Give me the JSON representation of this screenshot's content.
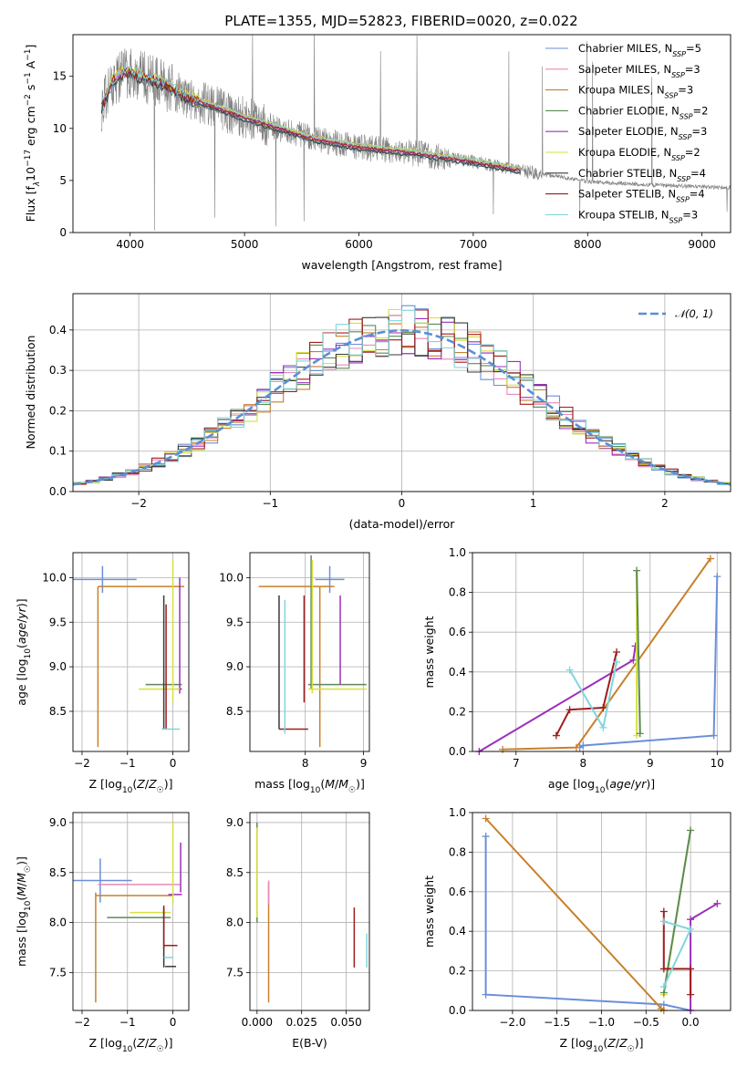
{
  "figure": {
    "title": "PLATE=1355, MJD=52823, FIBERID=0020, z=0.022"
  },
  "colors": {
    "spectrum": "#808080",
    "gauss": "#5b8ed6",
    "grid": "#b0b0b0"
  },
  "models": [
    {
      "name": "Chabrier MILES, N$_{SSP}$=5",
      "label_main": "Chabrier MILES, N",
      "label_sub": "SSP",
      "label_tail": "=5",
      "color": "#6a8fd8"
    },
    {
      "name": "Salpeter MILES, N$_{SSP}$=3",
      "label_main": "Salpeter MILES, N",
      "label_sub": "SSP",
      "label_tail": "=3",
      "color": "#e88ab8"
    },
    {
      "name": "Kroupa MILES, N$_{SSP}$=3",
      "label_main": "Kroupa MILES, N",
      "label_sub": "SSP",
      "label_tail": "=3",
      "color": "#c8802a"
    },
    {
      "name": "Chabrier ELODIE, N$_{SSP}$=2",
      "label_main": "Chabrier ELODIE, N",
      "label_sub": "SSP",
      "label_tail": "=2",
      "color": "#5d8a55"
    },
    {
      "name": "Salpeter ELODIE, N$_{SSP}$=3",
      "label_main": "Salpeter ELODIE, N",
      "label_sub": "SSP",
      "label_tail": "=3",
      "color": "#9b30b8"
    },
    {
      "name": "Kroupa ELODIE, N$_{SSP}$=2",
      "label_main": "Kroupa ELODIE, N",
      "label_sub": "SSP",
      "label_tail": "=2",
      "color": "#d6e040"
    },
    {
      "name": "Chabrier STELIB, N$_{SSP}$=4",
      "label_main": "Chabrier STELIB, N",
      "label_sub": "SSP",
      "label_tail": "=4",
      "color": "#3a3a3a"
    },
    {
      "name": "Salpeter STELIB, N$_{SSP}$=4",
      "label_main": "Salpeter STELIB, N",
      "label_sub": "SSP",
      "label_tail": "=4",
      "color": "#a01c1c"
    },
    {
      "name": "Kroupa STELIB, N$_{SSP}$=3",
      "label_main": "Kroupa STELIB, N",
      "label_sub": "SSP",
      "label_tail": "=3",
      "color": "#7fd6dc"
    }
  ],
  "chart_data": [
    {
      "id": "spectrum",
      "type": "line",
      "title": "PLATE=1355, MJD=52823, FIBERID=0020, z=0.022",
      "xlabel": "wavelength [Angstrom, rest frame]",
      "ylabel_main": "Flux [f",
      "ylabel_tail": "10",
      "ylabel_units": " erg cm",
      "ylabel_end": " s",
      "ylabel_A": " A",
      "xlim": [
        3500,
        9250
      ],
      "ylim": [
        0,
        19
      ],
      "xticks": [
        4000,
        5000,
        6000,
        7000,
        8000,
        9000
      ],
      "yticks": [
        0,
        5,
        10,
        15
      ],
      "data_range": [
        3750,
        9250
      ],
      "continuum": [
        [
          3750,
          12.0
        ],
        [
          3850,
          14.5
        ],
        [
          3950,
          15.5
        ],
        [
          4100,
          15.0
        ],
        [
          4300,
          14.2
        ],
        [
          4500,
          13.0
        ],
        [
          4800,
          11.8
        ],
        [
          5000,
          11.0
        ],
        [
          5300,
          10.0
        ],
        [
          5600,
          9.0
        ],
        [
          6000,
          8.2
        ],
        [
          6500,
          7.6
        ],
        [
          7000,
          6.8
        ],
        [
          7500,
          5.8
        ],
        [
          8000,
          4.9
        ],
        [
          8500,
          4.6
        ],
        [
          9000,
          4.4
        ],
        [
          9250,
          4.3
        ]
      ],
      "model_range": [
        3750,
        7420
      ]
    },
    {
      "id": "residuals",
      "type": "histogram",
      "xlabel": "(data-model)/error",
      "ylabel": "Normed distribution",
      "xlim": [
        -2.5,
        2.5
      ],
      "ylim": [
        0,
        0.49
      ],
      "xticks": [
        -2,
        -1,
        0,
        1,
        2
      ],
      "yticks": [
        0.0,
        0.1,
        0.2,
        0.3,
        0.4
      ],
      "legend": "$\\mathcal{N}(0,1)$",
      "legend_glyph": "𝒩(0, 1)",
      "bin_width": 0.1
    },
    {
      "id": "age_vs_Z",
      "type": "errorbar",
      "xlabel": "Z [log10(Z/Z☉)]",
      "ylabel": "age [log10(age/yr)]",
      "xlim": [
        -2.2,
        0.35
      ],
      "ylim": [
        8.05,
        10.28
      ],
      "xticks": [
        -2,
        -1,
        0
      ],
      "yticks": [
        8.5,
        9.0,
        9.5,
        10.0
      ],
      "points": [
        {
          "m": 0,
          "x": -1.55,
          "xerr": 0.75,
          "y": 9.98,
          "yerr": 0.15
        },
        {
          "m": 2,
          "x": -1.65,
          "xerr": 0.0,
          "y": 9.0,
          "yerr": 0.9
        },
        {
          "m": 2,
          "x": -0.7,
          "xerr": 0.95,
          "y": 9.9,
          "yerr": 0.0
        },
        {
          "m": 3,
          "x": -0.2,
          "xerr": 0.4,
          "y": 8.8,
          "yerr": 0.0
        },
        {
          "m": 4,
          "x": 0.15,
          "xerr": 0.05,
          "y": 8.75,
          "yerr": 0.0
        },
        {
          "m": 4,
          "x": 0.15,
          "xerr": 0.0,
          "y": 9.35,
          "yerr": 0.65
        },
        {
          "m": 5,
          "x": -0.3,
          "xerr": 0.45,
          "y": 8.75,
          "yerr": 0.0
        },
        {
          "m": 5,
          "x": 0.0,
          "xerr": 0.0,
          "y": 9.4,
          "yerr": 0.8
        },
        {
          "m": 6,
          "x": -0.2,
          "xerr": 0.0,
          "y": 9.05,
          "yerr": 0.75
        },
        {
          "m": 7,
          "x": -0.15,
          "xerr": 0.0,
          "y": 9.0,
          "yerr": 0.7
        },
        {
          "m": 8,
          "x": -0.05,
          "xerr": 0.2,
          "y": 8.3,
          "yerr": 0.0
        }
      ]
    },
    {
      "id": "age_vs_mass",
      "type": "errorbar",
      "xlabel": "mass [log10(M/M☉)]",
      "ylabel": "",
      "xlim": [
        7.05,
        9.1
      ],
      "ylim": [
        8.05,
        10.28
      ],
      "xticks": [
        8,
        9
      ],
      "yticks": [
        8.5,
        9.0,
        9.5,
        10.0
      ],
      "points": [
        {
          "m": 0,
          "x": 8.42,
          "xerr": 0.25,
          "y": 9.98,
          "yerr": 0.15
        },
        {
          "m": 2,
          "x": 8.25,
          "xerr": 0.0,
          "y": 9.0,
          "yerr": 0.9
        },
        {
          "m": 2,
          "x": 7.85,
          "xerr": 0.65,
          "y": 9.9,
          "yerr": 0.0
        },
        {
          "m": 3,
          "x": 8.55,
          "xerr": 0.5,
          "y": 8.8,
          "yerr": 0.0
        },
        {
          "m": 3,
          "x": 8.1,
          "xerr": 0.0,
          "y": 9.5,
          "yerr": 0.75
        },
        {
          "m": 4,
          "x": 8.6,
          "xerr": 0.0,
          "y": 9.3,
          "yerr": 0.5
        },
        {
          "m": 5,
          "x": 8.55,
          "xerr": 0.5,
          "y": 8.75,
          "yerr": 0.0
        },
        {
          "m": 5,
          "x": 8.12,
          "xerr": 0.0,
          "y": 9.45,
          "yerr": 0.75
        },
        {
          "m": 6,
          "x": 7.55,
          "xerr": 0.0,
          "y": 9.05,
          "yerr": 0.75
        },
        {
          "m": 7,
          "x": 7.8,
          "xerr": 0.25,
          "y": 8.3,
          "yerr": 0.0
        },
        {
          "m": 7,
          "x": 7.98,
          "xerr": 0.0,
          "y": 9.2,
          "yerr": 0.6
        },
        {
          "m": 8,
          "x": 7.65,
          "xerr": 0.0,
          "y": 9.0,
          "yerr": 0.75
        }
      ]
    },
    {
      "id": "weight_vs_age",
      "type": "line",
      "xlabel": "age [log10(age/yr)]",
      "ylabel": "mass weight",
      "xlim": [
        6.35,
        10.2
      ],
      "ylim": [
        0,
        1.0
      ],
      "xticks": [
        7,
        8,
        9,
        10
      ],
      "yticks": [
        0.0,
        0.2,
        0.4,
        0.6,
        0.8,
        1.0
      ],
      "series": [
        {
          "m": 0,
          "points": [
            [
              7.95,
              0.02
            ],
            [
              8.0,
              0.03
            ],
            [
              9.95,
              0.08
            ],
            [
              10.0,
              0.88
            ]
          ]
        },
        {
          "m": 2,
          "points": [
            [
              6.8,
              0.01
            ],
            [
              7.9,
              0.02
            ],
            [
              9.9,
              0.97
            ]
          ]
        },
        {
          "m": 4,
          "points": [
            [
              6.45,
              0.0
            ],
            [
              8.75,
              0.46
            ],
            [
              8.78,
              0.53
            ]
          ]
        },
        {
          "m": 5,
          "points": [
            [
              8.8,
              0.08
            ],
            [
              8.8,
              0.91
            ]
          ]
        },
        {
          "m": 3,
          "points": [
            [
              8.8,
              0.91
            ],
            [
              8.85,
              0.09
            ]
          ]
        },
        {
          "m": 7,
          "points": [
            [
              7.6,
              0.08
            ],
            [
              7.8,
              0.21
            ],
            [
              8.3,
              0.22
            ],
            [
              8.5,
              0.5
            ]
          ]
        },
        {
          "m": 8,
          "points": [
            [
              7.8,
              0.41
            ],
            [
              8.3,
              0.12
            ],
            [
              8.5,
              0.45
            ]
          ]
        }
      ]
    },
    {
      "id": "mass_vs_Z",
      "type": "errorbar",
      "xlabel": "Z [log10(Z/Z☉)]",
      "ylabel": "mass [log10(M/M☉)]",
      "xlim": [
        -2.2,
        0.35
      ],
      "ylim": [
        7.12,
        9.1
      ],
      "xticks": [
        -2,
        -1,
        0
      ],
      "yticks": [
        7.5,
        8.0,
        8.5,
        9.0
      ],
      "points": [
        {
          "m": 0,
          "x": -1.6,
          "xerr": 0.7,
          "y": 8.42,
          "yerr": 0.22
        },
        {
          "m": 1,
          "x": -0.75,
          "xerr": 0.9,
          "y": 8.38,
          "yerr": 0.0
        },
        {
          "m": 2,
          "x": -1.7,
          "xerr": 0.0,
          "y": 7.75,
          "yerr": 0.55
        },
        {
          "m": 2,
          "x": -0.85,
          "xerr": 0.85,
          "y": 8.27,
          "yerr": 0.0
        },
        {
          "m": 3,
          "x": -0.75,
          "xerr": 0.7,
          "y": 8.05,
          "yerr": 0.0
        },
        {
          "m": 4,
          "x": 0.17,
          "xerr": 0.0,
          "y": 8.55,
          "yerr": 0.25
        },
        {
          "m": 4,
          "x": 0.05,
          "xerr": 0.15,
          "y": 8.28,
          "yerr": 0.0
        },
        {
          "m": 5,
          "x": -0.5,
          "xerr": 0.45,
          "y": 8.1,
          "yerr": 0.0
        },
        {
          "m": 5,
          "x": 0.0,
          "xerr": 0.0,
          "y": 8.6,
          "yerr": 0.42
        },
        {
          "m": 6,
          "x": -0.2,
          "xerr": 0.0,
          "y": 7.85,
          "yerr": 0.3
        },
        {
          "m": 7,
          "x": -0.2,
          "xerr": 0.0,
          "y": 7.95,
          "yerr": 0.22
        },
        {
          "m": 7,
          "x": -0.05,
          "xerr": 0.15,
          "y": 7.77,
          "yerr": 0.0
        },
        {
          "m": 8,
          "x": -0.1,
          "xerr": 0.1,
          "y": 7.65,
          "yerr": 0.0
        },
        {
          "m": 6,
          "x": -0.05,
          "xerr": 0.12,
          "y": 7.56,
          "yerr": 0.0
        }
      ]
    },
    {
      "id": "mass_vs_ebv",
      "type": "errorbar",
      "xlabel": "E(B-V)",
      "ylabel": "",
      "xlim": [
        -0.004,
        0.063
      ],
      "ylim": [
        7.12,
        9.1
      ],
      "xticks": [
        0.0,
        0.025,
        0.05
      ],
      "xtick_labels": [
        "0.000",
        "0.025",
        "0.050"
      ],
      "yticks": [
        7.5,
        8.0,
        8.5,
        9.0
      ],
      "points": [
        {
          "m": 3,
          "x": 0.0,
          "xerr": 0.0,
          "y": 8.5,
          "yerr": 0.5
        },
        {
          "m": 5,
          "x": 0.0,
          "xerr": 0.0,
          "y": 8.5,
          "yerr": 0.45
        },
        {
          "m": 2,
          "x": 0.0065,
          "xerr": 0.0,
          "y": 7.8,
          "yerr": 0.6
        },
        {
          "m": 1,
          "x": 0.0065,
          "xerr": 0.0,
          "y": 8.3,
          "yerr": 0.12
        },
        {
          "m": 7,
          "x": 0.0545,
          "xerr": 0.0,
          "y": 7.85,
          "yerr": 0.3
        },
        {
          "m": 8,
          "x": 0.0615,
          "xerr": 0.0,
          "y": 7.72,
          "yerr": 0.17
        }
      ]
    },
    {
      "id": "weight_vs_Z",
      "type": "line",
      "xlabel": "Z [log10(Z/Z☉)]",
      "ylabel": "mass weight",
      "xlim": [
        -2.45,
        0.45
      ],
      "ylim": [
        0,
        1.0
      ],
      "xticks": [
        -2.0,
        -1.5,
        -1.0,
        -0.5,
        0.0
      ],
      "xtick_labels": [
        "−2.0",
        "−1.5",
        "−1.0",
        "−0.5",
        "0.0"
      ],
      "yticks": [
        0.0,
        0.2,
        0.4,
        0.6,
        0.8,
        1.0
      ],
      "series": [
        {
          "m": 0,
          "points": [
            [
              -2.3,
              0.88
            ],
            [
              -2.3,
              0.08
            ],
            [
              -0.3,
              0.03
            ],
            [
              0.0,
              0.0
            ]
          ]
        },
        {
          "m": 2,
          "points": [
            [
              -2.3,
              0.97
            ],
            [
              -0.33,
              0.01
            ],
            [
              -0.3,
              0.0
            ]
          ]
        },
        {
          "m": 4,
          "points": [
            [
              0.0,
              0.0
            ],
            [
              0.0,
              0.46
            ],
            [
              0.3,
              0.54
            ]
          ]
        },
        {
          "m": 5,
          "points": [
            [
              -0.3,
              0.08
            ],
            [
              0.0,
              0.91
            ]
          ]
        },
        {
          "m": 3,
          "points": [
            [
              -0.3,
              0.09
            ],
            [
              0.0,
              0.91
            ]
          ]
        },
        {
          "m": 7,
          "points": [
            [
              -0.3,
              0.5
            ],
            [
              -0.3,
              0.21
            ],
            [
              0.0,
              0.21
            ],
            [
              0.0,
              0.08
            ]
          ]
        },
        {
          "m": 8,
          "points": [
            [
              -0.3,
              0.12
            ],
            [
              0.0,
              0.41
            ],
            [
              -0.3,
              0.45
            ]
          ]
        }
      ]
    }
  ]
}
